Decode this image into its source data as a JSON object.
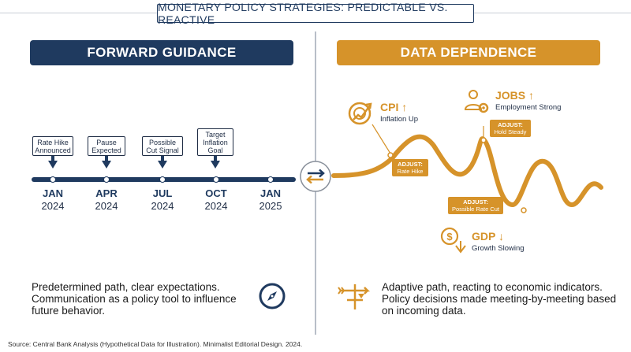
{
  "title": "MONETARY POLICY STRATEGIES: PREDICTABLE VS. REACTIVE",
  "left_panel": {
    "header": "FORWARD GUIDANCE",
    "events": [
      {
        "lines": [
          "Rate Hike",
          "Announced"
        ]
      },
      {
        "lines": [
          "Pause",
          "Expected"
        ]
      },
      {
        "lines": [
          "Possible",
          "Cut Signal"
        ]
      },
      {
        "lines": [
          "Target",
          "Inflation",
          "Goal"
        ]
      }
    ],
    "timeline": [
      {
        "month": "JAN",
        "year": "2024"
      },
      {
        "month": "APR",
        "year": "2024"
      },
      {
        "month": "JUL",
        "year": "2024"
      },
      {
        "month": "OCT",
        "year": "2024"
      },
      {
        "month": "JAN",
        "year": "2025"
      }
    ],
    "description": "Predetermined path, clear expectations. Communication as a policy tool to influence future behavior.",
    "icon": "compass-icon"
  },
  "right_panel": {
    "header": "DATA DEPENDENCE",
    "indicators": [
      {
        "label": "CPI",
        "arrow": "↑",
        "sub": "Inflation Up",
        "icon": "target-chart-icon"
      },
      {
        "label": "JOBS",
        "arrow": "↑",
        "sub": "Employment Strong",
        "icon": "worker-gear-icon"
      },
      {
        "label": "GDP",
        "arrow": "↓",
        "sub": "Growth Slowing",
        "icon": "dollar-down-icon"
      }
    ],
    "adjustments": [
      {
        "title": "ADJUST:",
        "action": "Rate Hike"
      },
      {
        "title": "ADJUST:",
        "action": "Hold Steady"
      },
      {
        "title": "ADJUST:",
        "action": "Possible Rate Cut"
      }
    ],
    "description": "Adaptive path, reacting to economic indicators. Policy decisions made meeting-by-meeting based on incoming data.",
    "icon": "weathervane-icon"
  },
  "center_icon": "swap-arrows-icon",
  "source": "Source: Central Bank Analysis (Hypothetical Data for Illustration). Minimalist Editorial Design. 2024.",
  "colors": {
    "navy": "#1f3a5f",
    "orange": "#d6932a",
    "divider": "#b8bec8"
  }
}
